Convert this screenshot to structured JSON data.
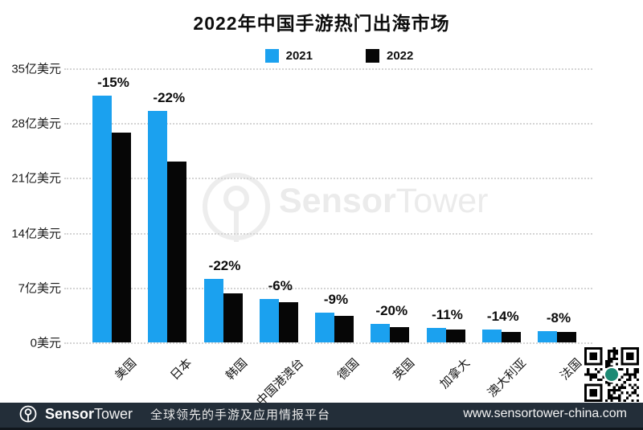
{
  "title": "2022年中国手游热门出海市场",
  "legend": [
    {
      "label": "2021",
      "color": "#1ba1ef"
    },
    {
      "label": "2022",
      "color": "#060606"
    }
  ],
  "chart_data": {
    "type": "bar",
    "title": "2022年中国手游热门出海市场",
    "categories": [
      "美国",
      "日本",
      "韩国",
      "中国港澳台",
      "德国",
      "英国",
      "加拿大",
      "澳大利亚",
      "法国"
    ],
    "series": [
      {
        "name": "2021",
        "color": "#1ba1ef",
        "values": [
          31.5,
          29.6,
          8.1,
          5.5,
          3.75,
          2.4,
          1.8,
          1.6,
          1.45
        ]
      },
      {
        "name": "2022",
        "color": "#060606",
        "values": [
          26.8,
          23.1,
          6.3,
          5.15,
          3.4,
          1.92,
          1.6,
          1.38,
          1.33
        ]
      }
    ],
    "change_labels": [
      "-15%",
      "-22%",
      "-22%",
      "-6%",
      "-9%",
      "-20%",
      "-11%",
      "-14%",
      "-8%"
    ],
    "y_ticks": [
      {
        "value": 0,
        "label": "0美元"
      },
      {
        "value": 7,
        "label": "7亿美元"
      },
      {
        "value": 14,
        "label": "14亿美元"
      },
      {
        "value": 21,
        "label": "21亿美元"
      },
      {
        "value": 28,
        "label": "28亿美元"
      },
      {
        "value": 35,
        "label": "35亿美元"
      }
    ],
    "ylim": [
      0,
      35
    ],
    "grid": true,
    "legend_position": "top"
  },
  "watermark": {
    "brand_bold": "Sensor",
    "brand_light": "Tower"
  },
  "footer": {
    "brand_bold": "Sensor",
    "brand_light": "Tower",
    "tagline": "全球领先的手游及应用情报平台",
    "url": "www.sensortower-china.com",
    "bg_color": "#232e39"
  },
  "colors": {
    "grid": "#d4d4d4",
    "qr_center": "#1d8a74"
  }
}
